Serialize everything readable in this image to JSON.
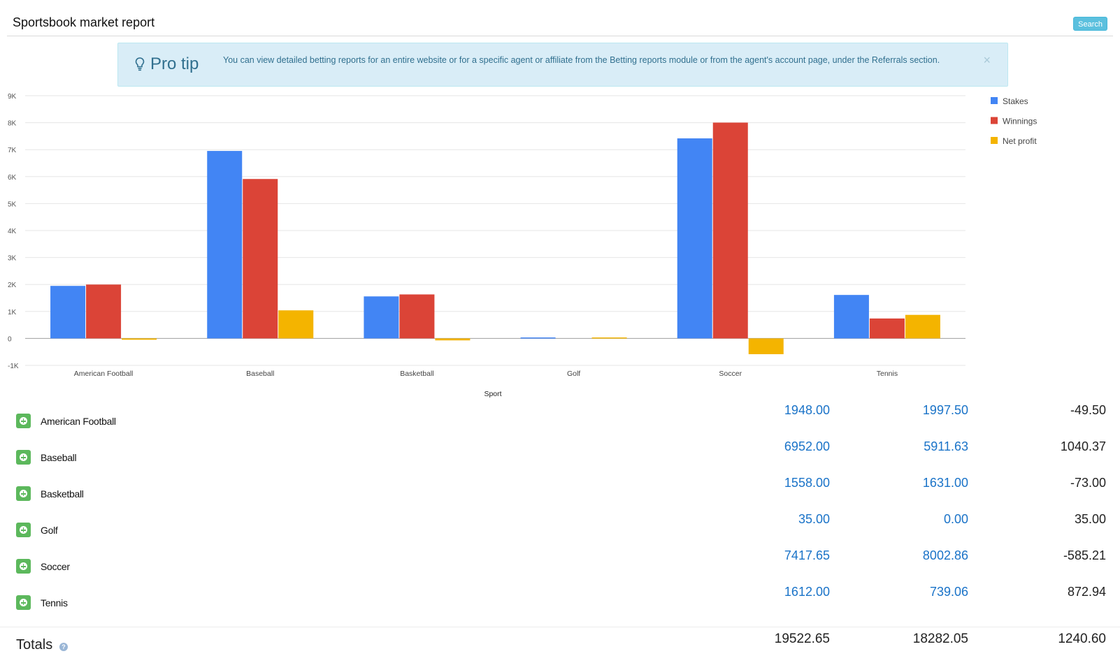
{
  "header": {
    "title": "Sportsbook market report",
    "search_label": "Search"
  },
  "protip": {
    "title": "Pro tip",
    "text": "You can view detailed betting reports for an entire website or for a specific agent or affiliate from the Betting reports module or from the agent's account page, under the Referrals section.",
    "close": "×"
  },
  "chart_data": {
    "type": "bar",
    "xlabel": "Sport",
    "ylabel": "",
    "categories": [
      "American Football",
      "Baseball",
      "Basketball",
      "Golf",
      "Soccer",
      "Tennis"
    ],
    "series": [
      {
        "name": "Stakes",
        "color": "#4285f4",
        "values": [
          1948.0,
          6952.0,
          1558.0,
          35.0,
          7417.65,
          1612.0
        ]
      },
      {
        "name": "Winnings",
        "color": "#db4437",
        "values": [
          1997.5,
          5911.63,
          1631.0,
          0.0,
          8002.86,
          739.06
        ]
      },
      {
        "name": "Net profit",
        "color": "#f4b400",
        "values": [
          -49.5,
          1040.37,
          -73.0,
          35.0,
          -585.21,
          872.94
        ]
      }
    ],
    "ylim": [
      -1000,
      9000
    ],
    "yticks": [
      -1000,
      0,
      1000,
      2000,
      3000,
      4000,
      5000,
      6000,
      7000,
      8000,
      9000
    ],
    "ytick_labels": [
      "-1K",
      "0",
      "1K",
      "2K",
      "3K",
      "4K",
      "5K",
      "6K",
      "7K",
      "8K",
      "9K"
    ],
    "grid": true,
    "legend": "top-right"
  },
  "rows": [
    {
      "sport": "American Football",
      "stakes": "1948.00",
      "winnings": "1997.50",
      "net": "-49.50"
    },
    {
      "sport": "Baseball",
      "stakes": "6952.00",
      "winnings": "5911.63",
      "net": "1040.37"
    },
    {
      "sport": "Basketball",
      "stakes": "1558.00",
      "winnings": "1631.00",
      "net": "-73.00"
    },
    {
      "sport": "Golf",
      "stakes": "35.00",
      "winnings": "0.00",
      "net": "35.00"
    },
    {
      "sport": "Soccer",
      "stakes": "7417.65",
      "winnings": "8002.86",
      "net": "-585.21"
    },
    {
      "sport": "Tennis",
      "stakes": "1612.00",
      "winnings": "739.06",
      "net": "872.94"
    }
  ],
  "totals": {
    "label": "Totals",
    "help": "?",
    "stakes": "19522.65",
    "winnings": "18282.05",
    "net": "1240.60"
  }
}
